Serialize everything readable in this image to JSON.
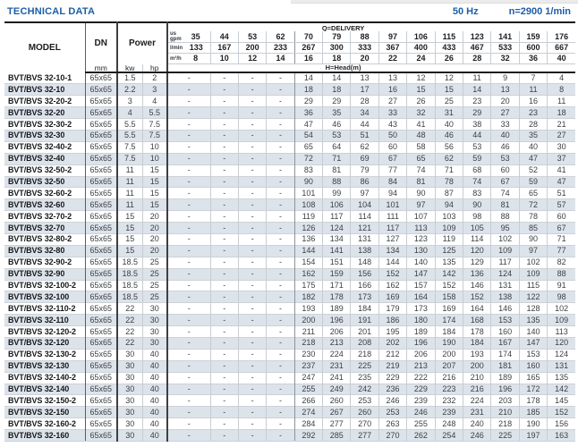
{
  "header": {
    "title": "TECHNICAL DATA",
    "frequency": "50 Hz",
    "speed": "n=2900 1/min"
  },
  "colors": {
    "accent_blue": "#1b5ea8",
    "row_stripe": "#dce3ea",
    "grid_light": "#c7cdd3",
    "grid_dark": "#3f3f3f"
  },
  "table": {
    "col_model": "MODEL",
    "col_dn": "DN",
    "col_dn_unit": "mm",
    "col_power": "Power",
    "col_kw": "kw",
    "col_hp": "hp",
    "delivery_label": "Q=DELIVERY",
    "head_label": "H=Head(m)",
    "flow_units": {
      "us_gpm_line1": "us",
      "us_gpm_line2": "gpm",
      "l_min": "l/min",
      "m3_h": "m³/h"
    },
    "flow_rows": {
      "us_gpm": [
        "35",
        "44",
        "53",
        "62",
        "70",
        "79",
        "88",
        "97",
        "106",
        "115",
        "123",
        "141",
        "159",
        "176"
      ],
      "l_min": [
        "133",
        "167",
        "200",
        "233",
        "267",
        "300",
        "333",
        "367",
        "400",
        "433",
        "467",
        "533",
        "600",
        "667"
      ],
      "m3_h": [
        "8",
        "10",
        "12",
        "14",
        "16",
        "18",
        "20",
        "22",
        "24",
        "26",
        "28",
        "32",
        "36",
        "40"
      ]
    },
    "rows": [
      {
        "model": "BVT/BVS 32-10-1",
        "dn": "65x65",
        "kw": "1.5",
        "hp": "2",
        "values": [
          "-",
          "-",
          "-",
          "-",
          "14",
          "14",
          "13",
          "13",
          "12",
          "12",
          "11",
          "9",
          "7",
          "4"
        ]
      },
      {
        "model": "BVT/BVS 32-10",
        "dn": "65x65",
        "kw": "2.2",
        "hp": "3",
        "values": [
          "-",
          "-",
          "-",
          "-",
          "18",
          "18",
          "17",
          "16",
          "15",
          "15",
          "14",
          "13",
          "11",
          "8"
        ]
      },
      {
        "model": "BVT/BVS 32-20-2",
        "dn": "65x65",
        "kw": "3",
        "hp": "4",
        "values": [
          "-",
          "-",
          "-",
          "-",
          "29",
          "29",
          "28",
          "27",
          "26",
          "25",
          "23",
          "20",
          "16",
          "11"
        ]
      },
      {
        "model": "BVT/BVS 32-20",
        "dn": "65x65",
        "kw": "4",
        "hp": "5.5",
        "values": [
          "-",
          "-",
          "-",
          "-",
          "36",
          "35",
          "34",
          "33",
          "32",
          "31",
          "29",
          "27",
          "23",
          "18"
        ]
      },
      {
        "model": "BVT/BVS 32-30-2",
        "dn": "65x65",
        "kw": "5.5",
        "hp": "7.5",
        "values": [
          "-",
          "-",
          "-",
          "-",
          "47",
          "46",
          "44",
          "43",
          "41",
          "40",
          "38",
          "33",
          "28",
          "21"
        ]
      },
      {
        "model": "BVT/BVS 32-30",
        "dn": "65x65",
        "kw": "5.5",
        "hp": "7.5",
        "values": [
          "-",
          "-",
          "-",
          "-",
          "54",
          "53",
          "51",
          "50",
          "48",
          "46",
          "44",
          "40",
          "35",
          "27"
        ]
      },
      {
        "model": "BVT/BVS 32-40-2",
        "dn": "65x65",
        "kw": "7.5",
        "hp": "10",
        "values": [
          "-",
          "-",
          "-",
          "-",
          "65",
          "64",
          "62",
          "60",
          "58",
          "56",
          "53",
          "46",
          "40",
          "30"
        ]
      },
      {
        "model": "BVT/BVS 32-40",
        "dn": "65x65",
        "kw": "7.5",
        "hp": "10",
        "values": [
          "-",
          "-",
          "-",
          "-",
          "72",
          "71",
          "69",
          "67",
          "65",
          "62",
          "59",
          "53",
          "47",
          "37"
        ]
      },
      {
        "model": "BVT/BVS 32-50-2",
        "dn": "65x65",
        "kw": "11",
        "hp": "15",
        "values": [
          "-",
          "-",
          "-",
          "-",
          "83",
          "81",
          "79",
          "77",
          "74",
          "71",
          "68",
          "60",
          "52",
          "41"
        ]
      },
      {
        "model": "BVT/BVS 32-50",
        "dn": "65x65",
        "kw": "11",
        "hp": "15",
        "values": [
          "-",
          "-",
          "-",
          "-",
          "90",
          "88",
          "86",
          "84",
          "81",
          "78",
          "74",
          "67",
          "59",
          "47"
        ]
      },
      {
        "model": "BVT/BVS 32-60-2",
        "dn": "65x65",
        "kw": "11",
        "hp": "15",
        "values": [
          "-",
          "-",
          "-",
          "-",
          "101",
          "99",
          "97",
          "94",
          "90",
          "87",
          "83",
          "74",
          "65",
          "51"
        ]
      },
      {
        "model": "BVT/BVS 32-60",
        "dn": "65x65",
        "kw": "11",
        "hp": "15",
        "values": [
          "-",
          "-",
          "-",
          "-",
          "108",
          "106",
          "104",
          "101",
          "97",
          "94",
          "90",
          "81",
          "72",
          "57"
        ]
      },
      {
        "model": "BVT/BVS 32-70-2",
        "dn": "65x65",
        "kw": "15",
        "hp": "20",
        "values": [
          "-",
          "-",
          "-",
          "-",
          "119",
          "117",
          "114",
          "111",
          "107",
          "103",
          "98",
          "88",
          "78",
          "60"
        ]
      },
      {
        "model": "BVT/BVS 32-70",
        "dn": "65x65",
        "kw": "15",
        "hp": "20",
        "values": [
          "-",
          "-",
          "-",
          "-",
          "126",
          "124",
          "121",
          "117",
          "113",
          "109",
          "105",
          "95",
          "85",
          "67"
        ]
      },
      {
        "model": "BVT/BVS 32-80-2",
        "dn": "65x65",
        "kw": "15",
        "hp": "20",
        "values": [
          "-",
          "-",
          "-",
          "-",
          "136",
          "134",
          "131",
          "127",
          "123",
          "119",
          "114",
          "102",
          "90",
          "71"
        ]
      },
      {
        "model": "BVT/BVS 32-80",
        "dn": "65x65",
        "kw": "15",
        "hp": "20",
        "values": [
          "-",
          "-",
          "-",
          "-",
          "144",
          "141",
          "138",
          "134",
          "130",
          "125",
          "120",
          "109",
          "97",
          "77"
        ]
      },
      {
        "model": "BVT/BVS 32-90-2",
        "dn": "65x65",
        "kw": "18.5",
        "hp": "25",
        "values": [
          "-",
          "-",
          "-",
          "-",
          "154",
          "151",
          "148",
          "144",
          "140",
          "135",
          "129",
          "117",
          "102",
          "82"
        ]
      },
      {
        "model": "BVT/BVS 32-90",
        "dn": "65x65",
        "kw": "18.5",
        "hp": "25",
        "values": [
          "-",
          "-",
          "-",
          "-",
          "162",
          "159",
          "156",
          "152",
          "147",
          "142",
          "136",
          "124",
          "109",
          "88"
        ]
      },
      {
        "model": "BVT/BVS 32-100-2",
        "dn": "65x65",
        "kw": "18.5",
        "hp": "25",
        "values": [
          "-",
          "-",
          "-",
          "-",
          "175",
          "171",
          "166",
          "162",
          "157",
          "152",
          "146",
          "131",
          "115",
          "91"
        ]
      },
      {
        "model": "BVT/BVS 32-100",
        "dn": "65x65",
        "kw": "18.5",
        "hp": "25",
        "values": [
          "-",
          "-",
          "-",
          "-",
          "182",
          "178",
          "173",
          "169",
          "164",
          "158",
          "152",
          "138",
          "122",
          "98"
        ]
      },
      {
        "model": "BVT/BVS 32-110-2",
        "dn": "65x65",
        "kw": "22",
        "hp": "30",
        "values": [
          "-",
          "-",
          "-",
          "-",
          "193",
          "189",
          "184",
          "179",
          "173",
          "169",
          "164",
          "146",
          "128",
          "102"
        ]
      },
      {
        "model": "BVT/BVS 32-110",
        "dn": "65x65",
        "kw": "22",
        "hp": "30",
        "values": [
          "-",
          "-",
          "-",
          "-",
          "200",
          "196",
          "191",
          "186",
          "180",
          "174",
          "168",
          "153",
          "135",
          "109"
        ]
      },
      {
        "model": "BVT/BVS 32-120-2",
        "dn": "65x65",
        "kw": "22",
        "hp": "30",
        "values": [
          "-",
          "-",
          "-",
          "-",
          "211",
          "206",
          "201",
          "195",
          "189",
          "184",
          "178",
          "160",
          "140",
          "113"
        ]
      },
      {
        "model": "BVT/BVS 32-120",
        "dn": "65x65",
        "kw": "22",
        "hp": "30",
        "values": [
          "-",
          "-",
          "-",
          "-",
          "218",
          "213",
          "208",
          "202",
          "196",
          "190",
          "184",
          "167",
          "147",
          "120"
        ]
      },
      {
        "model": "BVT/BVS 32-130-2",
        "dn": "65x65",
        "kw": "30",
        "hp": "40",
        "values": [
          "-",
          "-",
          "-",
          "-",
          "230",
          "224",
          "218",
          "212",
          "206",
          "200",
          "193",
          "174",
          "153",
          "124"
        ]
      },
      {
        "model": "BVT/BVS 32-130",
        "dn": "65x65",
        "kw": "30",
        "hp": "40",
        "values": [
          "-",
          "-",
          "-",
          "-",
          "237",
          "231",
          "225",
          "219",
          "213",
          "207",
          "200",
          "181",
          "160",
          "131"
        ]
      },
      {
        "model": "BVT/BVS 32-140-2",
        "dn": "65x65",
        "kw": "30",
        "hp": "40",
        "values": [
          "-",
          "-",
          "-",
          "-",
          "247",
          "241",
          "235",
          "229",
          "222",
          "216",
          "210",
          "189",
          "165",
          "135"
        ]
      },
      {
        "model": "BVT/BVS 32-140",
        "dn": "65x65",
        "kw": "30",
        "hp": "40",
        "values": [
          "-",
          "-",
          "-",
          "-",
          "255",
          "249",
          "242",
          "236",
          "229",
          "223",
          "216",
          "196",
          "172",
          "142"
        ]
      },
      {
        "model": "BVT/BVS 32-150-2",
        "dn": "65x65",
        "kw": "30",
        "hp": "40",
        "values": [
          "-",
          "-",
          "-",
          "-",
          "266",
          "260",
          "253",
          "246",
          "239",
          "232",
          "224",
          "203",
          "178",
          "145"
        ]
      },
      {
        "model": "BVT/BVS 32-150",
        "dn": "65x65",
        "kw": "30",
        "hp": "40",
        "values": [
          "-",
          "-",
          "-",
          "-",
          "274",
          "267",
          "260",
          "253",
          "246",
          "239",
          "231",
          "210",
          "185",
          "152"
        ]
      },
      {
        "model": "BVT/BVS 32-160-2",
        "dn": "65x65",
        "kw": "30",
        "hp": "40",
        "values": [
          "-",
          "-",
          "-",
          "-",
          "284",
          "277",
          "270",
          "263",
          "255",
          "248",
          "240",
          "218",
          "190",
          "156"
        ]
      },
      {
        "model": "BVT/BVS 32-160",
        "dn": "65x65",
        "kw": "30",
        "hp": "40",
        "values": [
          "-",
          "-",
          "-",
          "-",
          "292",
          "285",
          "277",
          "270",
          "262",
          "254",
          "246",
          "225",
          "197",
          "163"
        ]
      }
    ]
  }
}
